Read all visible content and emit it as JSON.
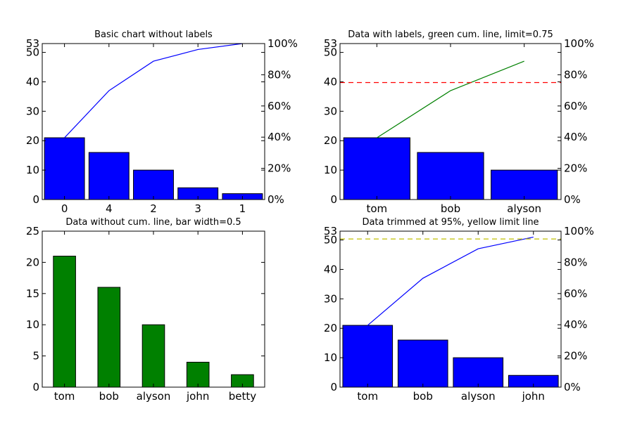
{
  "chart_data": [
    {
      "type": "bar",
      "title": "Basic chart without labels",
      "categories": [
        "0",
        "4",
        "2",
        "3",
        "1"
      ],
      "values": [
        21,
        16,
        10,
        4,
        2
      ],
      "bar_color": "#0000ff",
      "ylim": [
        0,
        53
      ],
      "yticks": [
        "0",
        "10",
        "20",
        "30",
        "40",
        "50",
        "53"
      ],
      "cum_line": {
        "color": "#0000ff",
        "values_pct": [
          39.6,
          69.8,
          88.7,
          96.2,
          100
        ]
      },
      "y2_ticks": [
        "0%",
        "20%",
        "40%",
        "60%",
        "80%",
        "100%"
      ]
    },
    {
      "type": "bar",
      "title": "Data with labels, green cum. line, limit=0.75",
      "categories": [
        "tom",
        "bob",
        "alyson"
      ],
      "values": [
        21,
        16,
        10
      ],
      "bar_color": "#0000ff",
      "ylim": [
        0,
        53
      ],
      "yticks": [
        "0",
        "10",
        "20",
        "30",
        "40",
        "50",
        "53"
      ],
      "cum_line": {
        "color": "#008000",
        "values_pct": [
          39.6,
          69.8,
          88.7
        ]
      },
      "limit_line": {
        "pct": 75,
        "color": "#ff0000"
      },
      "y2_ticks": [
        "0%",
        "20%",
        "40%",
        "60%",
        "80%",
        "100%"
      ]
    },
    {
      "type": "bar",
      "title": "Data without cum. line, bar width=0.5",
      "categories": [
        "tom",
        "bob",
        "alyson",
        "john",
        "betty"
      ],
      "values": [
        21,
        16,
        10,
        4,
        2
      ],
      "bar_color": "#008000",
      "bar_width": 0.5,
      "ylim": [
        0,
        25
      ],
      "yticks": [
        "0",
        "5",
        "10",
        "15",
        "20",
        "25"
      ]
    },
    {
      "type": "bar",
      "title": "Data trimmed at 95%, yellow limit line",
      "categories": [
        "tom",
        "bob",
        "alyson",
        "john"
      ],
      "values": [
        21,
        16,
        10,
        4
      ],
      "bar_color": "#0000ff",
      "ylim": [
        0,
        53
      ],
      "yticks": [
        "0",
        "10",
        "20",
        "30",
        "40",
        "50",
        "53"
      ],
      "cum_line": {
        "color": "#0000ff",
        "values_pct": [
          39.6,
          69.8,
          88.7,
          96.2
        ]
      },
      "limit_line": {
        "pct": 95,
        "color": "#bfbf00"
      },
      "y2_ticks": [
        "0%",
        "20%",
        "40%",
        "60%",
        "80%",
        "100%"
      ]
    }
  ]
}
